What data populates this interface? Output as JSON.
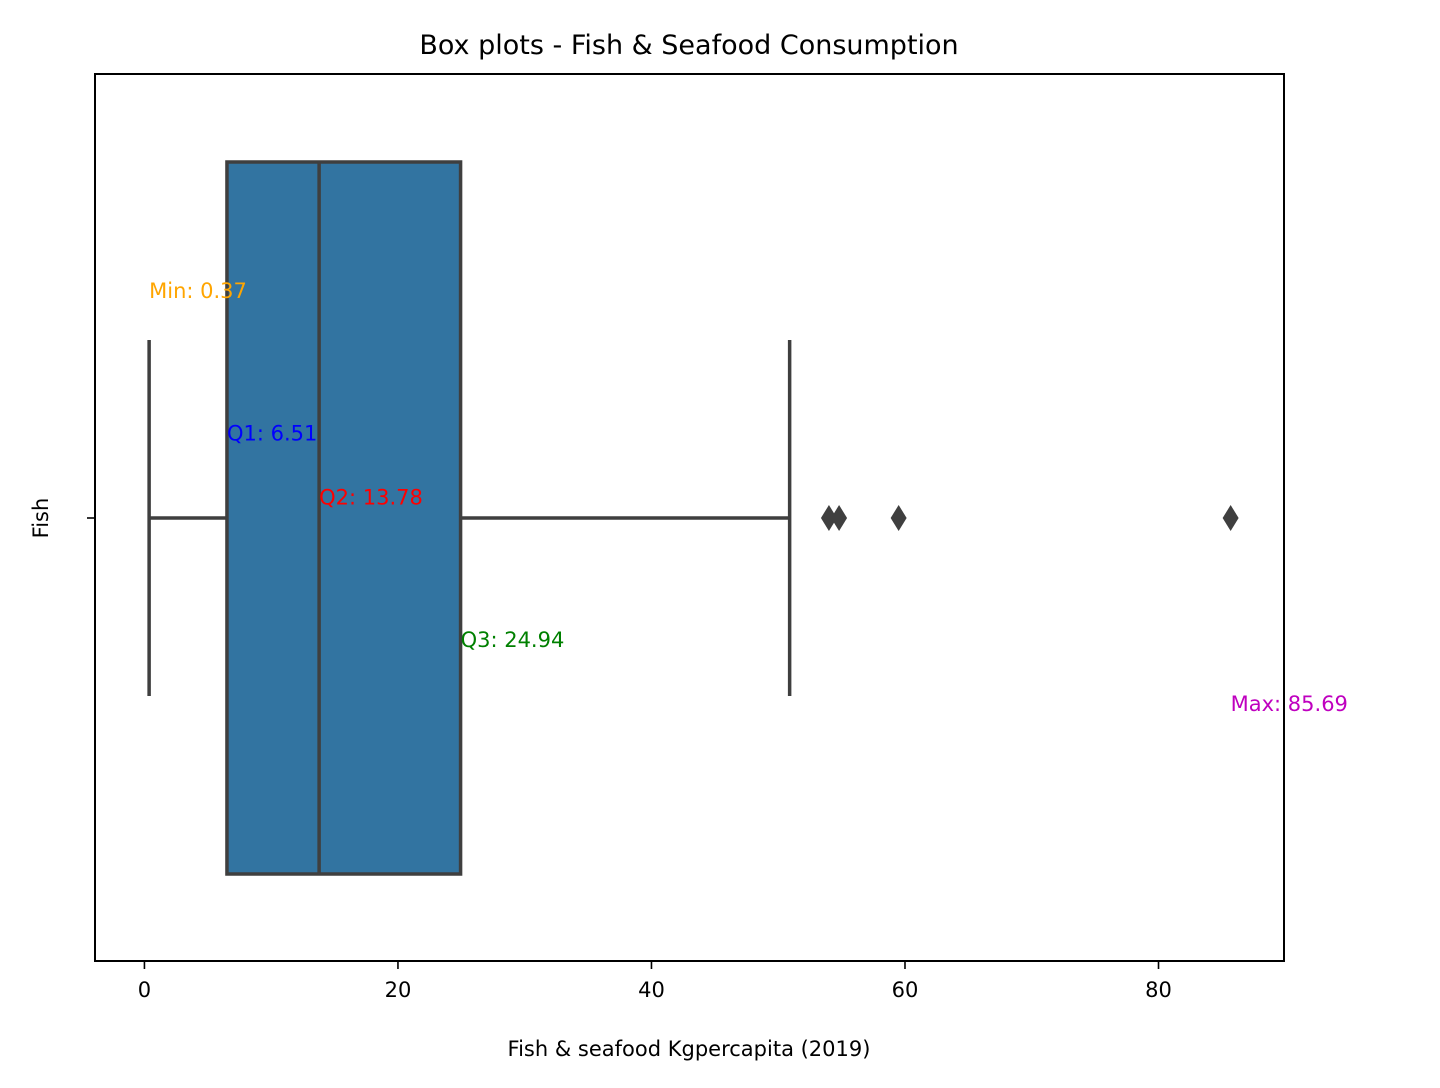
{
  "chart_data": {
    "type": "box",
    "title": "Box plots - Fish & Seafood Consumption",
    "xlabel": "Fish & seafood Kgpercapita (2019)",
    "ylabel": "Fish",
    "xlim": [
      -3.9,
      89.9
    ],
    "x_ticks": [
      0,
      20,
      40,
      60,
      80
    ],
    "x_tick_labels": [
      "0",
      "20",
      "40",
      "60",
      "80"
    ],
    "y_ticks": [
      ""
    ],
    "grid": false,
    "box": {
      "category": "Fish",
      "whisker_low": 0.37,
      "q1": 6.51,
      "median": 13.78,
      "q3": 24.94,
      "whisker_high": 50.9,
      "outliers": [
        54.0,
        54.8,
        59.5,
        85.69
      ],
      "fill_color": "#3274a1",
      "line_color": "#3f3f3f"
    },
    "annotations": [
      {
        "key": "min",
        "text": "Min: 0.37",
        "x": 0.37,
        "y": -0.32,
        "color": "#ffa500"
      },
      {
        "key": "q1",
        "text": "Q1: 6.51",
        "x": 6.51,
        "y": -0.12,
        "color": "#0000ff"
      },
      {
        "key": "q2",
        "text": "Q2: 13.78",
        "x": 13.78,
        "y": -0.03,
        "color": "#ff0000"
      },
      {
        "key": "q3",
        "text": "Q3: 24.94",
        "x": 24.94,
        "y": 0.17,
        "color": "#008000"
      },
      {
        "key": "max",
        "text": "Max: 85.69",
        "x": 85.69,
        "y": 0.26,
        "color": "#bf00bf"
      }
    ]
  }
}
